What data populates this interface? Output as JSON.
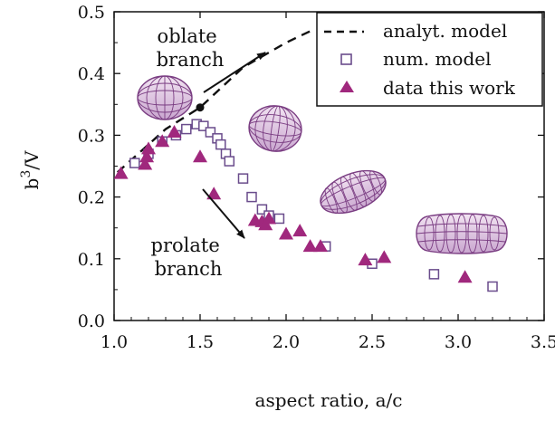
{
  "chart_data": {
    "type": "scatter",
    "xlabel": "aspect ratio, a/c",
    "ylabel_base": "b",
    "ylabel_exp": "3",
    "ylabel_tail": "/V",
    "xlim": [
      1.0,
      3.5
    ],
    "ylim": [
      0.0,
      0.5
    ],
    "xticks": [
      "1.0",
      "1.5",
      "2.0",
      "2.5",
      "3.0",
      "3.5"
    ],
    "yticks": [
      "0.0",
      "0.1",
      "0.2",
      "0.3",
      "0.4",
      "0.5"
    ],
    "grid": false,
    "legend_position": "top-right",
    "accent_color": "#a0287d",
    "open_square_color": "#6a4c8c",
    "series": [
      {
        "name": "analyt. model",
        "style": "dashed-line",
        "color": "#111111",
        "points": [
          [
            1.02,
            0.24
          ],
          [
            1.3,
            0.31
          ],
          [
            1.5,
            0.345
          ],
          [
            1.75,
            0.41
          ],
          [
            2.0,
            0.45
          ],
          [
            2.15,
            0.47
          ]
        ]
      },
      {
        "name": "num. model",
        "style": "open-square",
        "color": "#6a4c8c",
        "points": [
          [
            1.12,
            0.255
          ],
          [
            1.2,
            0.27
          ],
          [
            1.28,
            0.29
          ],
          [
            1.36,
            0.3
          ],
          [
            1.42,
            0.31
          ],
          [
            1.48,
            0.318
          ],
          [
            1.52,
            0.315
          ],
          [
            1.56,
            0.305
          ],
          [
            1.6,
            0.295
          ],
          [
            1.62,
            0.285
          ],
          [
            1.65,
            0.27
          ],
          [
            1.67,
            0.258
          ],
          [
            1.75,
            0.23
          ],
          [
            1.8,
            0.2
          ],
          [
            1.86,
            0.18
          ],
          [
            1.9,
            0.17
          ],
          [
            1.96,
            0.165
          ],
          [
            2.23,
            0.12
          ],
          [
            2.5,
            0.092
          ],
          [
            2.86,
            0.075
          ],
          [
            3.2,
            0.055
          ]
        ]
      },
      {
        "name": "data this work",
        "style": "filled-triangle",
        "color": "#a0287d",
        "points": [
          [
            1.04,
            0.238
          ],
          [
            1.18,
            0.253
          ],
          [
            1.19,
            0.265
          ],
          [
            1.2,
            0.278
          ],
          [
            1.28,
            0.29
          ],
          [
            1.35,
            0.305
          ],
          [
            1.5,
            0.265
          ],
          [
            1.58,
            0.205
          ],
          [
            1.82,
            0.162
          ],
          [
            1.86,
            0.16
          ],
          [
            1.88,
            0.155
          ],
          [
            1.9,
            0.165
          ],
          [
            2.0,
            0.14
          ],
          [
            2.08,
            0.145
          ],
          [
            2.14,
            0.12
          ],
          [
            2.2,
            0.12
          ],
          [
            2.46,
            0.098
          ],
          [
            2.57,
            0.102
          ],
          [
            3.04,
            0.07
          ]
        ]
      }
    ],
    "special_point": {
      "x": 1.5,
      "y": 0.345,
      "color": "#111111"
    },
    "annotations": [
      {
        "id": "oblate",
        "lines": [
          "oblate",
          "branch"
        ]
      },
      {
        "id": "prolate",
        "lines": [
          "prolate",
          "branch"
        ]
      }
    ],
    "shape_icons": [
      "oblate-spheroid-icon",
      "near-sphere-icon",
      "prolate-spheroid-icon",
      "elongated-capsule-icon"
    ]
  }
}
